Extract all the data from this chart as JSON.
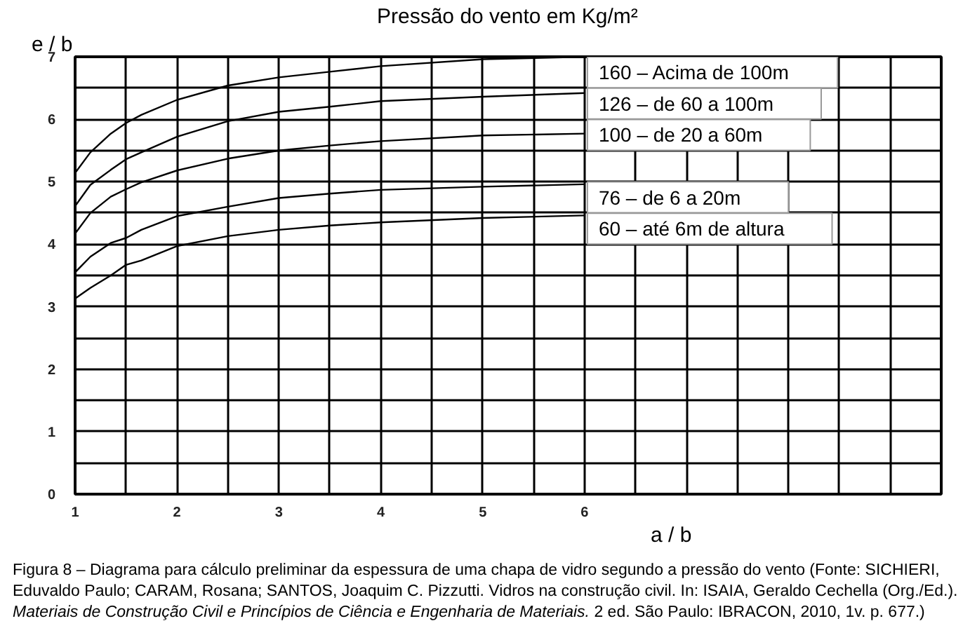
{
  "chart_data": {
    "type": "line",
    "title": "Pressão do vento em Kg/m²",
    "xlabel": "a / b",
    "ylabel": "e / b",
    "xlim": [
      1,
      9.5
    ],
    "xticks": [
      1,
      {
        "value": 1.5,
        "label": null
      },
      2,
      {
        "value": 2.5,
        "label": null
      },
      3,
      {
        "value": 3.5,
        "label": null
      },
      4,
      {
        "value": 4.5,
        "label": null
      },
      5,
      {
        "value": 5.5,
        "label": null
      },
      6,
      {
        "value": 6.5,
        "label": null
      },
      {
        "value": 7,
        "label": null
      },
      {
        "value": 7.5,
        "label": null
      },
      {
        "value": 8,
        "label": null
      },
      {
        "value": 8.5,
        "label": null
      },
      {
        "value": 9,
        "label": null
      },
      {
        "value": 9.5,
        "label": null
      }
    ],
    "ylim": [
      0,
      7
    ],
    "yticks": [
      0,
      {
        "value": 0.5,
        "label": null
      },
      1,
      {
        "value": 1.5,
        "label": null
      },
      2,
      {
        "value": 2.5,
        "label": null
      },
      3,
      {
        "value": 3.5,
        "label": null
      },
      4,
      {
        "value": 4.5,
        "label": null
      },
      5,
      {
        "value": 5.5,
        "label": null
      },
      6,
      {
        "value": 6.5,
        "label": null
      },
      7
    ],
    "grid": true,
    "x": [
      1,
      1.15,
      1.35,
      1.5,
      1.65,
      2,
      2.5,
      3,
      3.5,
      4,
      5,
      6
    ],
    "series": [
      {
        "name": "160 – Acima de 100m",
        "color": "#000000",
        "values": [
          5.14,
          5.47,
          5.77,
          5.94,
          6.07,
          6.31,
          6.54,
          6.67,
          6.76,
          6.85,
          6.96,
          7.0
        ]
      },
      {
        "name": "126 – de 60 a 100m",
        "color": "#000000",
        "values": [
          4.61,
          4.95,
          5.19,
          5.36,
          5.47,
          5.72,
          5.97,
          6.12,
          6.2,
          6.29,
          6.36,
          6.42
        ]
      },
      {
        "name": "100 – de 20 a 60m",
        "color": "#000000",
        "values": [
          4.17,
          4.5,
          4.76,
          4.88,
          4.99,
          5.18,
          5.37,
          5.5,
          5.58,
          5.65,
          5.74,
          5.77
        ]
      },
      {
        "name": "76 – de 6 a 20m",
        "color": "#000000",
        "values": [
          3.55,
          3.8,
          4.02,
          4.1,
          4.23,
          4.45,
          4.6,
          4.74,
          4.81,
          4.87,
          4.92,
          4.96
        ]
      },
      {
        "name": "60 – até 6m de altura",
        "color": "#000000",
        "values": [
          3.13,
          3.3,
          3.5,
          3.67,
          3.74,
          3.97,
          4.13,
          4.23,
          4.3,
          4.35,
          4.42,
          4.46
        ]
      }
    ],
    "annotations": [
      "Figura 8 – Diagrama para cálculo preliminar da espessura de uma chapa de vidro segundo a pressão do vento (Fonte: SICHIERI, Eduvaldo Paulo; CARAM, Rosana; SANTOS, Joaquim C. Pizzutti. Vidros na construção civil. In: ISAIA, Geraldo Cechella (Org./Ed.).",
      "Materiais de Construção Civil e Princípios de Ciência e Engenharia de Materiais.",
      "2 ed. São Paulo: IBRACON, 2010, 1v. p. 677.)"
    ]
  }
}
